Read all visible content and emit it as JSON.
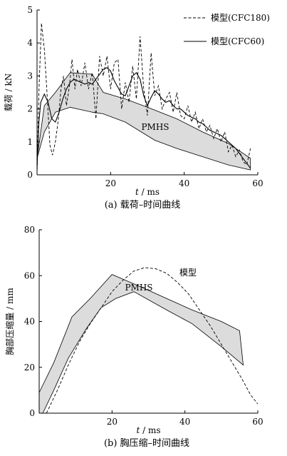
{
  "chart_data": [
    {
      "type": "line",
      "caption": "(a) 载荷–时间曲线",
      "xlabel_var": "t",
      "xlabel_unit": " / ms",
      "ylabel": "载荷 / kN",
      "xlim": [
        0,
        60
      ],
      "ylim": [
        0,
        5
      ],
      "xticks": [
        20,
        40,
        60
      ],
      "yticks": [
        0,
        1,
        2,
        3,
        4,
        5
      ],
      "band_label": "PMHS",
      "legend_position": "top-right",
      "band": {
        "name": "PMHS",
        "upper": [
          [
            0,
            0.5
          ],
          [
            2,
            2.1
          ],
          [
            5,
            2.5
          ],
          [
            9,
            3.1
          ],
          [
            15,
            3.05
          ],
          [
            18,
            2.5
          ],
          [
            24,
            2.3
          ],
          [
            30,
            2.05
          ],
          [
            38,
            1.7
          ],
          [
            45,
            1.3
          ],
          [
            52,
            0.95
          ],
          [
            58,
            0.5
          ]
        ],
        "lower": [
          [
            58,
            0.15
          ],
          [
            52,
            0.3
          ],
          [
            45,
            0.55
          ],
          [
            38,
            0.8
          ],
          [
            32,
            1.05
          ],
          [
            24,
            1.6
          ],
          [
            18,
            1.85
          ],
          [
            15,
            1.9
          ],
          [
            9,
            2.05
          ],
          [
            5,
            1.9
          ],
          [
            2,
            1.3
          ],
          [
            0,
            0.5
          ]
        ]
      },
      "series": [
        {
          "name": "模型(CFC180)",
          "style": "dashed",
          "points": [
            [
              0,
              0
            ],
            [
              0.5,
              2.5
            ],
            [
              1.2,
              4.6
            ],
            [
              2,
              3.8
            ],
            [
              2.8,
              2.3
            ],
            [
              3.5,
              0.9
            ],
            [
              4.2,
              0.6
            ],
            [
              5,
              1.0
            ],
            [
              5.8,
              1.7
            ],
            [
              6.5,
              2.6
            ],
            [
              7.2,
              3.0
            ],
            [
              8,
              2.1
            ],
            [
              8.8,
              2.7
            ],
            [
              9.5,
              3.5
            ],
            [
              10.3,
              2.6
            ],
            [
              11,
              3.2
            ],
            [
              12,
              2.7
            ],
            [
              13,
              3.4
            ],
            [
              14,
              2.6
            ],
            [
              15,
              3.1
            ],
            [
              16,
              1.7
            ],
            [
              17,
              3.6
            ],
            [
              18,
              3.0
            ],
            [
              19,
              3.6
            ],
            [
              20,
              2.6
            ],
            [
              21,
              3.4
            ],
            [
              22,
              3.5
            ],
            [
              23,
              2.0
            ],
            [
              24,
              2.8
            ],
            [
              25,
              2.2
            ],
            [
              26,
              3.3
            ],
            [
              27,
              2.3
            ],
            [
              28,
              4.2
            ],
            [
              29,
              2.6
            ],
            [
              30,
              1.8
            ],
            [
              31,
              3.7
            ],
            [
              32,
              2.4
            ],
            [
              33,
              2.7
            ],
            [
              34,
              2.0
            ],
            [
              35,
              2.3
            ],
            [
              36,
              2.5
            ],
            [
              37,
              1.9
            ],
            [
              38,
              2.5
            ],
            [
              39,
              1.8
            ],
            [
              40,
              1.7
            ],
            [
              41,
              2.1
            ],
            [
              42,
              1.6
            ],
            [
              43,
              1.9
            ],
            [
              44,
              1.4
            ],
            [
              45,
              1.7
            ],
            [
              46,
              1.3
            ],
            [
              47,
              1.5
            ],
            [
              48,
              1.1
            ],
            [
              49,
              1.4
            ],
            [
              50,
              1.0
            ],
            [
              51,
              1.3
            ],
            [
              52,
              0.7
            ],
            [
              53,
              0.9
            ],
            [
              54,
              0.55
            ],
            [
              55,
              0.75
            ],
            [
              56,
              0.4
            ],
            [
              57,
              0.3
            ],
            [
              58,
              0.8
            ]
          ]
        },
        {
          "name": "模型(CFC60)",
          "style": "solid",
          "points": [
            [
              0,
              0.2
            ],
            [
              0.5,
              1.6
            ],
            [
              1,
              2.2
            ],
            [
              2,
              2.45
            ],
            [
              3,
              2.2
            ],
            [
              4,
              1.7
            ],
            [
              5,
              1.6
            ],
            [
              6,
              1.9
            ],
            [
              7,
              2.3
            ],
            [
              8,
              2.6
            ],
            [
              9,
              2.8
            ],
            [
              10,
              2.9
            ],
            [
              11,
              2.85
            ],
            [
              12,
              2.8
            ],
            [
              13,
              2.75
            ],
            [
              14,
              2.8
            ],
            [
              15,
              2.75
            ],
            [
              16,
              2.9
            ],
            [
              17,
              3.05
            ],
            [
              18,
              3.2
            ],
            [
              19,
              3.25
            ],
            [
              20,
              3.15
            ],
            [
              21,
              2.85
            ],
            [
              22,
              2.65
            ],
            [
              23,
              2.45
            ],
            [
              24,
              2.4
            ],
            [
              25,
              2.7
            ],
            [
              26,
              3.0
            ],
            [
              27,
              3.1
            ],
            [
              28,
              2.9
            ],
            [
              29,
              2.4
            ],
            [
              30,
              2.1
            ],
            [
              31,
              2.35
            ],
            [
              32,
              2.55
            ],
            [
              33,
              2.45
            ],
            [
              34,
              2.3
            ],
            [
              35,
              2.2
            ],
            [
              36,
              2.25
            ],
            [
              37,
              2.1
            ],
            [
              38,
              2.0
            ],
            [
              39,
              2.0
            ],
            [
              40,
              1.9
            ],
            [
              41,
              1.8
            ],
            [
              42,
              1.75
            ],
            [
              43,
              1.7
            ],
            [
              44,
              1.6
            ],
            [
              45,
              1.55
            ],
            [
              46,
              1.45
            ],
            [
              47,
              1.35
            ],
            [
              48,
              1.3
            ],
            [
              49,
              1.25
            ],
            [
              50,
              1.2
            ],
            [
              51,
              1.1
            ],
            [
              52,
              1.0
            ],
            [
              53,
              0.9
            ],
            [
              54,
              0.8
            ],
            [
              55,
              0.65
            ],
            [
              56,
              0.5
            ],
            [
              57,
              0.35
            ],
            [
              58,
              0.2
            ]
          ]
        }
      ]
    },
    {
      "type": "line",
      "caption": "(b) 胸压缩–时间曲线",
      "xlabel_var": "t",
      "xlabel_unit": " / ms",
      "ylabel": "胸部压缩量 / mm",
      "xlim": [
        0,
        60
      ],
      "ylim": [
        0,
        80
      ],
      "xticks": [
        20,
        40,
        60
      ],
      "yticks": [
        0,
        20,
        40,
        60,
        80
      ],
      "band_label": "PMHS",
      "curve_label": "模型",
      "band": {
        "name": "PMHS",
        "upper": [
          [
            0,
            9
          ],
          [
            4,
            22
          ],
          [
            9,
            42
          ],
          [
            14,
            50
          ],
          [
            20,
            60.5
          ],
          [
            28,
            55
          ],
          [
            35,
            50
          ],
          [
            42,
            45
          ],
          [
            50,
            40
          ],
          [
            55,
            36
          ],
          [
            56,
            21
          ]
        ],
        "lower": [
          [
            56,
            21
          ],
          [
            50,
            29
          ],
          [
            42,
            39
          ],
          [
            35,
            45
          ],
          [
            26,
            53
          ],
          [
            21,
            50
          ],
          [
            17,
            46
          ],
          [
            13,
            37
          ],
          [
            8,
            24
          ],
          [
            4,
            10
          ],
          [
            1,
            0
          ],
          [
            0,
            0
          ]
        ]
      },
      "series": [
        {
          "name": "模型",
          "style": "dashed",
          "points": [
            [
              2,
              0
            ],
            [
              5,
              10
            ],
            [
              8,
              21
            ],
            [
              11,
              31
            ],
            [
              14,
              39
            ],
            [
              17,
              46
            ],
            [
              20,
              53
            ],
            [
              23,
              58
            ],
            [
              26,
              62
            ],
            [
              29,
              63.5
            ],
            [
              32,
              63
            ],
            [
              35,
              61
            ],
            [
              38,
              57
            ],
            [
              41,
              52
            ],
            [
              44,
              45
            ],
            [
              47,
              38
            ],
            [
              50,
              30
            ],
            [
              53,
              22
            ],
            [
              56,
              14
            ],
            [
              58,
              8
            ],
            [
              60,
              4
            ]
          ]
        }
      ]
    }
  ]
}
